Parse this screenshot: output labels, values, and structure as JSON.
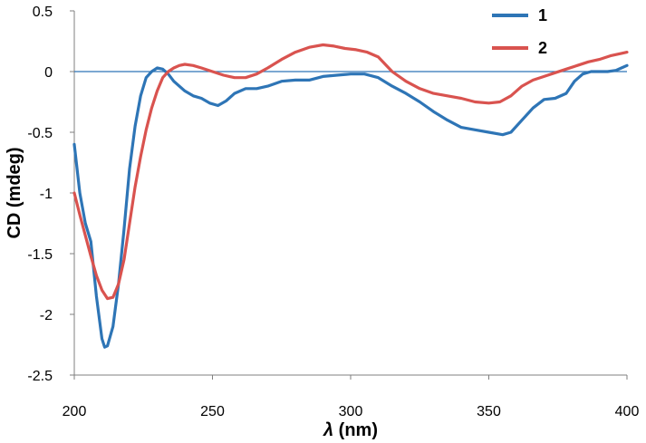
{
  "chart_data": {
    "type": "line",
    "title": "",
    "xlabel_symbol": "λ",
    "xlabel_unit": " (nm)",
    "ylabel": "CD (mdeg)",
    "xlim": [
      200,
      400
    ],
    "ylim": [
      -2.5,
      0.5
    ],
    "xticks": [
      200,
      250,
      300,
      350,
      400
    ],
    "yticks": [
      0.5,
      0,
      -0.5,
      -1,
      -1.5,
      -2,
      -2.5
    ],
    "xtick_labels": [
      "200",
      "250",
      "300",
      "350",
      "400"
    ],
    "ytick_labels": [
      "0.5",
      "0",
      "-0.5",
      "-1",
      "-1.5",
      "-2",
      "-2.5"
    ],
    "grid": false,
    "zero_line": true,
    "zero_line_color": "#2e75b6",
    "legend_position": "top-right",
    "series": [
      {
        "name": "1",
        "color": "#2e75b6",
        "points": [
          [
            200,
            -0.6
          ],
          [
            202,
            -1.0
          ],
          [
            204,
            -1.25
          ],
          [
            206,
            -1.4
          ],
          [
            208,
            -1.85
          ],
          [
            210,
            -2.2
          ],
          [
            211,
            -2.27
          ],
          [
            212,
            -2.26
          ],
          [
            214,
            -2.1
          ],
          [
            216,
            -1.75
          ],
          [
            218,
            -1.3
          ],
          [
            220,
            -0.8
          ],
          [
            222,
            -0.45
          ],
          [
            224,
            -0.2
          ],
          [
            226,
            -0.05
          ],
          [
            228,
            0.0
          ],
          [
            230,
            0.03
          ],
          [
            232,
            0.02
          ],
          [
            234,
            -0.02
          ],
          [
            236,
            -0.08
          ],
          [
            238,
            -0.12
          ],
          [
            240,
            -0.16
          ],
          [
            243,
            -0.2
          ],
          [
            246,
            -0.22
          ],
          [
            249,
            -0.26
          ],
          [
            252,
            -0.28
          ],
          [
            255,
            -0.24
          ],
          [
            258,
            -0.18
          ],
          [
            262,
            -0.14
          ],
          [
            266,
            -0.14
          ],
          [
            270,
            -0.12
          ],
          [
            275,
            -0.08
          ],
          [
            280,
            -0.07
          ],
          [
            285,
            -0.07
          ],
          [
            290,
            -0.04
          ],
          [
            295,
            -0.03
          ],
          [
            300,
            -0.02
          ],
          [
            305,
            -0.02
          ],
          [
            310,
            -0.05
          ],
          [
            315,
            -0.12
          ],
          [
            320,
            -0.18
          ],
          [
            325,
            -0.25
          ],
          [
            330,
            -0.33
          ],
          [
            335,
            -0.4
          ],
          [
            340,
            -0.46
          ],
          [
            345,
            -0.48
          ],
          [
            350,
            -0.5
          ],
          [
            355,
            -0.52
          ],
          [
            358,
            -0.5
          ],
          [
            362,
            -0.4
          ],
          [
            366,
            -0.3
          ],
          [
            370,
            -0.23
          ],
          [
            374,
            -0.22
          ],
          [
            378,
            -0.18
          ],
          [
            381,
            -0.08
          ],
          [
            384,
            -0.02
          ],
          [
            387,
            0.0
          ],
          [
            390,
            0.0
          ],
          [
            393,
            0.0
          ],
          [
            396,
            0.01
          ],
          [
            398,
            0.03
          ],
          [
            400,
            0.05
          ]
        ]
      },
      {
        "name": "2",
        "color": "#d9534f",
        "points": [
          [
            200,
            -1.0
          ],
          [
            202,
            -1.18
          ],
          [
            204,
            -1.35
          ],
          [
            206,
            -1.52
          ],
          [
            208,
            -1.68
          ],
          [
            210,
            -1.8
          ],
          [
            212,
            -1.87
          ],
          [
            214,
            -1.86
          ],
          [
            216,
            -1.75
          ],
          [
            218,
            -1.55
          ],
          [
            220,
            -1.25
          ],
          [
            222,
            -0.95
          ],
          [
            224,
            -0.7
          ],
          [
            226,
            -0.48
          ],
          [
            228,
            -0.3
          ],
          [
            230,
            -0.16
          ],
          [
            232,
            -0.05
          ],
          [
            234,
            0.0
          ],
          [
            236,
            0.03
          ],
          [
            238,
            0.05
          ],
          [
            240,
            0.06
          ],
          [
            243,
            0.05
          ],
          [
            246,
            0.03
          ],
          [
            250,
            0.0
          ],
          [
            254,
            -0.03
          ],
          [
            258,
            -0.05
          ],
          [
            262,
            -0.05
          ],
          [
            266,
            -0.02
          ],
          [
            270,
            0.03
          ],
          [
            275,
            0.1
          ],
          [
            280,
            0.16
          ],
          [
            285,
            0.2
          ],
          [
            290,
            0.22
          ],
          [
            294,
            0.21
          ],
          [
            298,
            0.19
          ],
          [
            302,
            0.18
          ],
          [
            306,
            0.16
          ],
          [
            310,
            0.12
          ],
          [
            315,
            0.0
          ],
          [
            320,
            -0.08
          ],
          [
            325,
            -0.14
          ],
          [
            330,
            -0.18
          ],
          [
            335,
            -0.2
          ],
          [
            340,
            -0.22
          ],
          [
            345,
            -0.25
          ],
          [
            350,
            -0.26
          ],
          [
            354,
            -0.25
          ],
          [
            358,
            -0.2
          ],
          [
            362,
            -0.12
          ],
          [
            366,
            -0.07
          ],
          [
            370,
            -0.04
          ],
          [
            374,
            -0.01
          ],
          [
            378,
            0.02
          ],
          [
            382,
            0.05
          ],
          [
            386,
            0.08
          ],
          [
            390,
            0.1
          ],
          [
            394,
            0.13
          ],
          [
            398,
            0.15
          ],
          [
            400,
            0.16
          ]
        ]
      }
    ]
  }
}
